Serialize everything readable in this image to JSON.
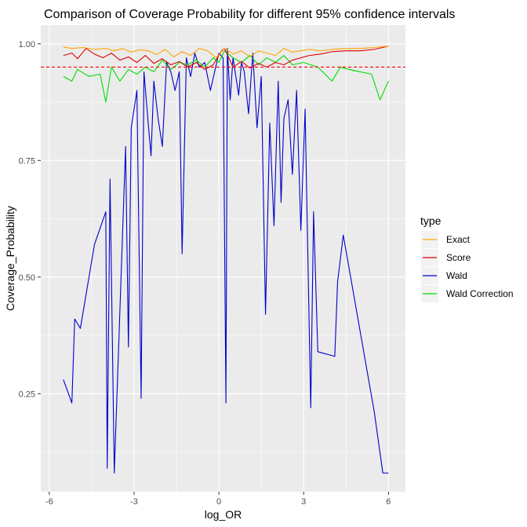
{
  "chart_data": {
    "type": "line",
    "title": "Comparison of Coverage Probability for different 95% confidence intervals",
    "xlabel": "log_OR",
    "ylabel": "Coverage_Probability",
    "xlim": [
      -6.3,
      6.6
    ],
    "ylim": [
      0.04,
      1.04
    ],
    "x_ticks": [
      -6,
      -3,
      0,
      3,
      6
    ],
    "x_tick_labels": [
      "-6",
      "-3",
      "0",
      "3",
      "6"
    ],
    "y_ticks": [
      0.25,
      0.5,
      0.75,
      1.0
    ],
    "y_tick_labels": [
      "0.25",
      "0.50",
      "0.75",
      "1.00"
    ],
    "grid": true,
    "reference_line": {
      "y": 0.95,
      "color": "#ff0000",
      "style": "dashed"
    },
    "legend": {
      "title": "type",
      "position": "right"
    },
    "series": [
      {
        "name": "Exact",
        "color": "#ffa500",
        "x": [
          -5.5,
          -5.2,
          -4.8,
          -4.4,
          -4.0,
          -3.7,
          -3.4,
          -3.1,
          -2.8,
          -2.5,
          -2.2,
          -1.9,
          -1.6,
          -1.3,
          -1.0,
          -0.7,
          -0.4,
          -0.1,
          0.2,
          0.5,
          0.8,
          1.1,
          1.4,
          1.7,
          2.0,
          2.3,
          2.6,
          2.9,
          3.2,
          3.6,
          4.0,
          4.5,
          5.0,
          5.5,
          6.0
        ],
        "values": [
          0.993,
          0.99,
          0.992,
          0.988,
          0.99,
          0.985,
          0.99,
          0.982,
          0.987,
          0.985,
          0.977,
          0.988,
          0.972,
          0.983,
          0.975,
          0.99,
          0.985,
          0.97,
          0.99,
          0.978,
          0.985,
          0.972,
          0.985,
          0.98,
          0.975,
          0.99,
          0.982,
          0.985,
          0.988,
          0.985,
          0.988,
          0.99,
          0.99,
          0.992,
          0.995
        ]
      },
      {
        "name": "Score",
        "color": "#e00000",
        "x": [
          -5.5,
          -5.2,
          -5.0,
          -4.7,
          -4.4,
          -4.1,
          -3.8,
          -3.5,
          -3.2,
          -2.9,
          -2.6,
          -2.3,
          -2.0,
          -1.7,
          -1.4,
          -1.1,
          -0.8,
          -0.5,
          -0.2,
          0.1,
          0.2,
          0.5,
          0.8,
          1.1,
          1.4,
          1.7,
          2.0,
          2.3,
          2.6,
          2.9,
          3.2,
          3.6,
          4.0,
          4.5,
          5.0,
          5.5,
          6.0
        ],
        "values": [
          0.975,
          0.98,
          0.968,
          0.99,
          0.978,
          0.97,
          0.98,
          0.965,
          0.972,
          0.96,
          0.975,
          0.958,
          0.968,
          0.955,
          0.962,
          0.95,
          0.96,
          0.945,
          0.955,
          0.985,
          0.99,
          0.95,
          0.962,
          0.948,
          0.958,
          0.95,
          0.96,
          0.955,
          0.965,
          0.97,
          0.975,
          0.978,
          0.983,
          0.985,
          0.985,
          0.988,
          0.995
        ]
      },
      {
        "name": "Wald",
        "color": "#0000cc",
        "x": [
          -5.5,
          -5.2,
          -5.1,
          -4.9,
          -4.4,
          -4.0,
          -3.95,
          -3.85,
          -3.7,
          -3.3,
          -3.2,
          -3.1,
          -2.9,
          -2.75,
          -2.65,
          -2.5,
          -2.4,
          -2.3,
          -2.15,
          -2.0,
          -1.85,
          -1.7,
          -1.55,
          -1.4,
          -1.3,
          -1.15,
          -1.0,
          -0.85,
          -0.7,
          -0.5,
          -0.3,
          0.0,
          0.15,
          0.25,
          0.3,
          0.4,
          0.5,
          0.6,
          0.7,
          0.8,
          0.9,
          1.05,
          1.2,
          1.35,
          1.5,
          1.65,
          1.8,
          1.95,
          2.1,
          2.2,
          2.3,
          2.45,
          2.6,
          2.75,
          2.9,
          3.05,
          3.25,
          3.35,
          3.5,
          4.1,
          4.2,
          4.4,
          5.5,
          5.8,
          6.0
        ],
        "values": [
          0.28,
          0.23,
          0.41,
          0.39,
          0.57,
          0.64,
          0.09,
          0.71,
          0.08,
          0.78,
          0.35,
          0.82,
          0.9,
          0.24,
          0.94,
          0.83,
          0.76,
          0.92,
          0.84,
          0.78,
          0.96,
          0.94,
          0.9,
          0.94,
          0.55,
          0.97,
          0.93,
          0.98,
          0.95,
          0.96,
          0.9,
          0.98,
          0.97,
          0.23,
          0.99,
          0.88,
          0.97,
          0.93,
          0.89,
          0.96,
          0.94,
          0.85,
          0.98,
          0.82,
          0.93,
          0.42,
          0.83,
          0.61,
          0.92,
          0.66,
          0.84,
          0.88,
          0.72,
          0.9,
          0.6,
          0.86,
          0.22,
          0.64,
          0.34,
          0.33,
          0.49,
          0.59,
          0.21,
          0.08,
          0.08
        ]
      },
      {
        "name": "Wald Correction",
        "color": "#00dd00",
        "x": [
          -5.5,
          -5.2,
          -5.0,
          -4.6,
          -4.2,
          -4.0,
          -3.8,
          -3.5,
          -3.2,
          -2.9,
          -2.6,
          -2.3,
          -2.0,
          -1.7,
          -1.4,
          -1.1,
          -0.8,
          -0.5,
          -0.2,
          0.0,
          0.2,
          0.5,
          0.8,
          1.1,
          1.4,
          1.7,
          2.0,
          2.3,
          2.6,
          3.0,
          3.5,
          4.0,
          4.3,
          4.6,
          5.0,
          5.4,
          5.7,
          6.0
        ],
        "values": [
          0.93,
          0.92,
          0.945,
          0.93,
          0.935,
          0.875,
          0.95,
          0.92,
          0.945,
          0.935,
          0.95,
          0.94,
          0.965,
          0.945,
          0.96,
          0.955,
          0.965,
          0.95,
          0.97,
          0.96,
          0.985,
          0.97,
          0.96,
          0.975,
          0.955,
          0.97,
          0.96,
          0.975,
          0.955,
          0.96,
          0.95,
          0.92,
          0.95,
          0.945,
          0.94,
          0.935,
          0.88,
          0.92
        ]
      }
    ]
  }
}
